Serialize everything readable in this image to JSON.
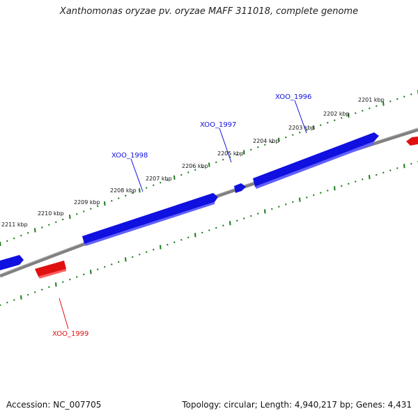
{
  "title": "Xanthomonas oryzae pv. oryzae MAFF 311018, complete genome",
  "footer": {
    "accession": "Accession: NC_007705",
    "summary": "Topology: circular; Length: 4,940,217 bp; Genes: 4,431"
  },
  "colors": {
    "forward_gene": "#1010e0",
    "reverse_gene": "#e01010",
    "backbone": "#808080",
    "tick": "#1a7a1a"
  },
  "ruler": [
    "2201 kbp",
    "2202 kbp",
    "2203 kbp",
    "2204 kbp",
    "2205 kbp",
    "2206 kbp",
    "2207 kbp",
    "2208 kbp",
    "2209 kbp",
    "2210 kbp",
    "2211 kbp"
  ],
  "genes": [
    {
      "id": "XOO_1996",
      "strand": "forward"
    },
    {
      "id": "XOO_1997",
      "strand": "forward"
    },
    {
      "id": "XOO_1998",
      "strand": "forward"
    },
    {
      "id": "XOO_1999",
      "strand": "reverse"
    }
  ]
}
